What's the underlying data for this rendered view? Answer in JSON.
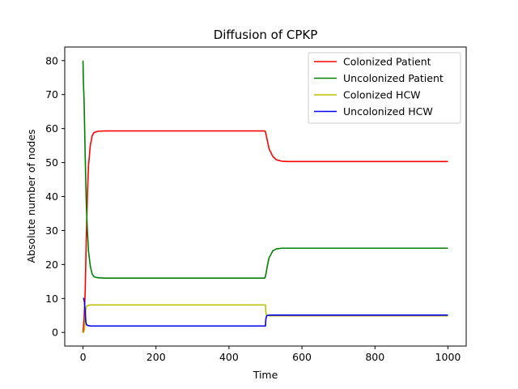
{
  "chart_data": {
    "type": "line",
    "title": "Diffusion of CPKP",
    "xlabel": "Time",
    "ylabel": "Absolute number of nodes",
    "xlim": [
      -50,
      1050
    ],
    "ylim": [
      -4,
      84
    ],
    "xticks": [
      0,
      200,
      400,
      600,
      800,
      1000
    ],
    "yticks": [
      0,
      10,
      20,
      30,
      40,
      50,
      60,
      70,
      80
    ],
    "grid": false,
    "legend_position": "top-right",
    "series": [
      {
        "name": "Colonized Patient",
        "color": "#ff0000",
        "x": [
          0,
          3,
          6,
          9,
          12,
          15,
          20,
          25,
          30,
          40,
          60,
          100,
          300,
          498,
          500,
          505,
          510,
          520,
          530,
          545,
          560,
          600,
          800,
          1000
        ],
        "y": [
          0,
          4,
          12,
          28,
          40,
          49,
          55,
          57.8,
          58.8,
          59.2,
          59.3,
          59.3,
          59.3,
          59.3,
          59.0,
          56.5,
          54.0,
          51.8,
          50.8,
          50.4,
          50.3,
          50.3,
          50.3,
          50.3
        ]
      },
      {
        "name": "Uncolonized Patient",
        "color": "#008000",
        "x": [
          0,
          1,
          3,
          6,
          9,
          12,
          15,
          20,
          25,
          30,
          40,
          60,
          100,
          300,
          498,
          500,
          505,
          510,
          520,
          530,
          545,
          560,
          600,
          800,
          1000
        ],
        "y": [
          80,
          74,
          68,
          52,
          38,
          30,
          24,
          19.5,
          17.2,
          16.4,
          16.1,
          16.0,
          16.0,
          16.0,
          16.0,
          16.5,
          19.5,
          22.0,
          24.0,
          24.6,
          24.8,
          24.8,
          24.8,
          24.8,
          24.8
        ]
      },
      {
        "name": "Colonized HCW",
        "color": "#bfbf00",
        "x": [
          0,
          2,
          4,
          6,
          8,
          10,
          15,
          20,
          40,
          100,
          300,
          498,
          500,
          501,
          503,
          505,
          510,
          520,
          600,
          800,
          1000
        ],
        "y": [
          0,
          0,
          1,
          4,
          7,
          7.8,
          8.0,
          8.1,
          8.1,
          8.1,
          8.1,
          8.1,
          8.1,
          6.0,
          5.2,
          5.0,
          4.9,
          4.9,
          4.9,
          4.9,
          4.9
        ]
      },
      {
        "name": "Uncolonized HCW",
        "color": "#0000ff",
        "x": [
          0,
          2,
          4,
          6,
          8,
          10,
          15,
          20,
          40,
          100,
          300,
          498,
          500,
          501,
          503,
          505,
          510,
          520,
          600,
          800,
          1000
        ],
        "y": [
          10,
          10,
          9,
          6,
          3,
          2.2,
          2.0,
          1.9,
          1.9,
          1.9,
          1.9,
          1.9,
          1.9,
          4.0,
          4.8,
          5.0,
          5.1,
          5.1,
          5.1,
          5.1,
          5.1
        ]
      }
    ]
  }
}
